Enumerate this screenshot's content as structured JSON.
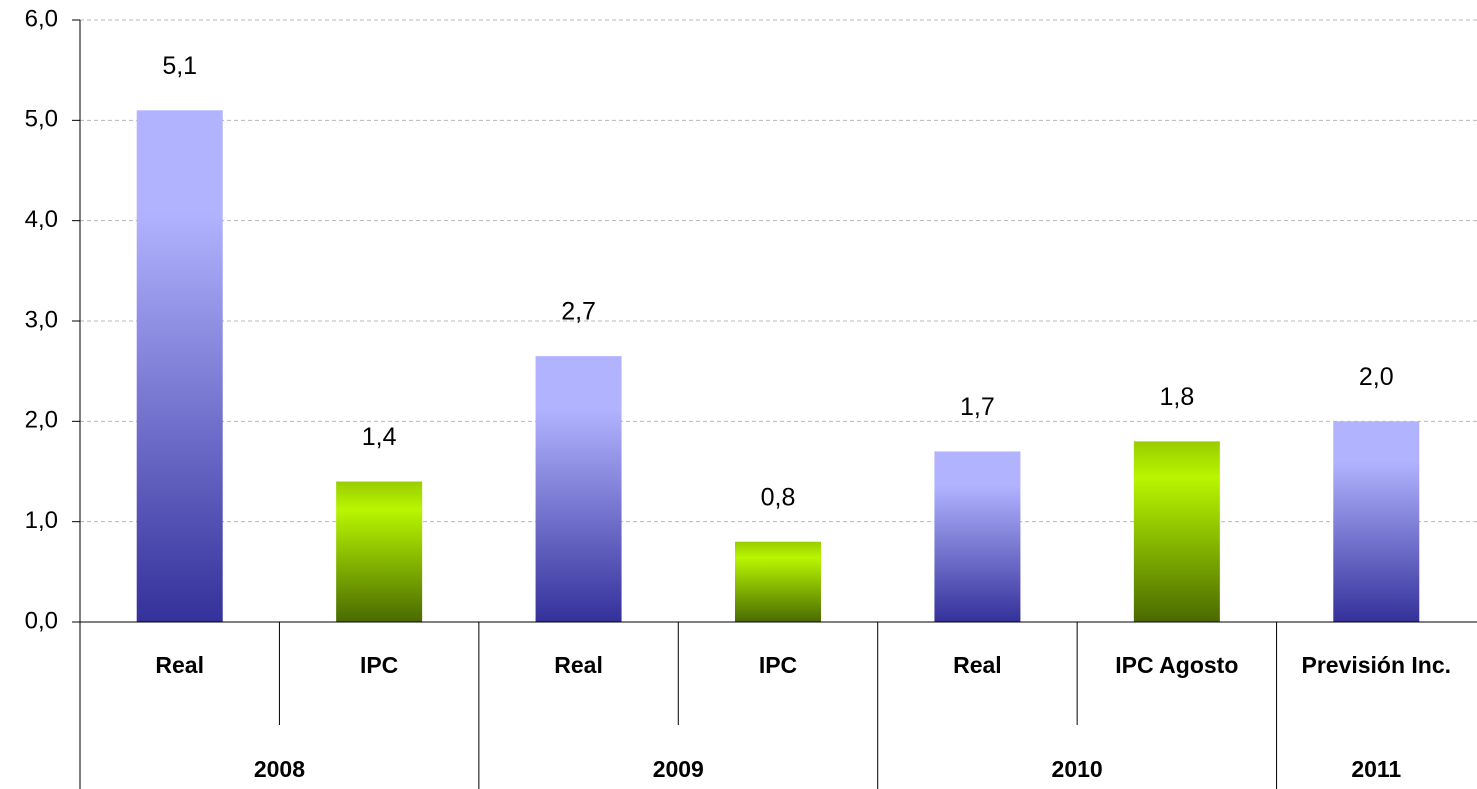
{
  "chart_data": {
    "type": "bar",
    "groups": [
      {
        "label": "2008",
        "categories": [
          "Real",
          "IPC"
        ]
      },
      {
        "label": "2009",
        "categories": [
          "Real",
          "IPC"
        ]
      },
      {
        "label": "2010",
        "categories": [
          "Real",
          "IPC Agosto"
        ]
      },
      {
        "label": "2011",
        "categories": [
          "Previsión Inc."
        ]
      }
    ],
    "values": [
      5.1,
      1.4,
      2.65,
      0.8,
      1.7,
      1.8,
      2.0
    ],
    "value_labels": [
      "5,1",
      "1,4",
      "2,7",
      "0,8",
      "1,7",
      "1,8",
      "2,0"
    ],
    "colors": [
      "#34319a",
      "#4a6a00",
      "#34319a",
      "#4a6a00",
      "#34319a",
      "#4a6a00",
      "#34319a"
    ],
    "ylim": [
      0,
      6
    ],
    "yticks": [
      {
        "value": 0,
        "label": "0,0"
      },
      {
        "value": 1,
        "label": "1,0"
      },
      {
        "value": 2,
        "label": "2,0"
      },
      {
        "value": 3,
        "label": "3,0"
      },
      {
        "value": 4,
        "label": "4,0"
      },
      {
        "value": 5,
        "label": "5,0"
      },
      {
        "value": 6,
        "label": "6,0"
      }
    ],
    "grid": true
  }
}
